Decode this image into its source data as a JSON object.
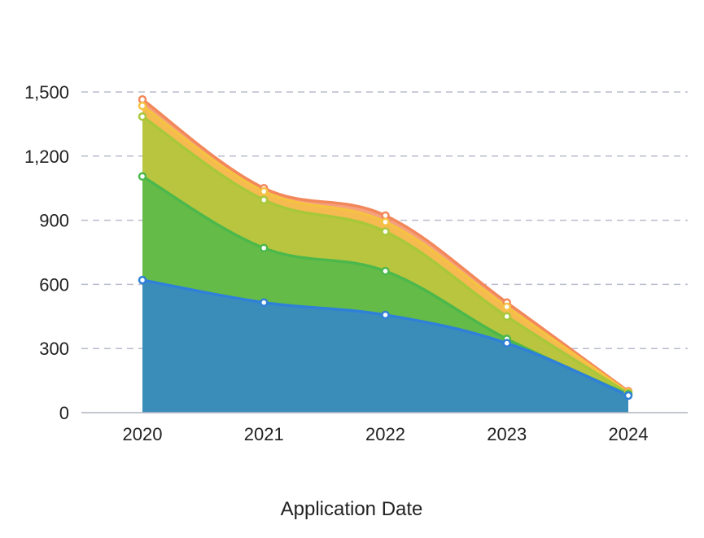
{
  "chart_data": {
    "type": "area",
    "stacked": true,
    "title": "",
    "xlabel": "Application Date",
    "ylabel": "",
    "categories": [
      "2020",
      "2021",
      "2022",
      "2023",
      "2024"
    ],
    "ylim": [
      0,
      1500
    ],
    "yticks": [
      0,
      300,
      600,
      900,
      1200,
      1500
    ],
    "ytick_labels": [
      "0",
      "300",
      "600",
      "900",
      "1,200",
      "1,500"
    ],
    "grid": true,
    "legend": "none",
    "series": [
      {
        "values": [
          620,
          515,
          457,
          325,
          80
        ],
        "color": "#2f80d8"
      },
      {
        "values": [
          485,
          255,
          205,
          20,
          5
        ],
        "color": "#4cb84c"
      },
      {
        "values": [
          280,
          225,
          185,
          105,
          5
        ],
        "color": "#a8c83a"
      },
      {
        "values": [
          50,
          40,
          45,
          45,
          5
        ],
        "color": "#f5c242"
      },
      {
        "values": [
          30,
          15,
          30,
          20,
          5
        ],
        "color": "#f2875a"
      }
    ]
  }
}
